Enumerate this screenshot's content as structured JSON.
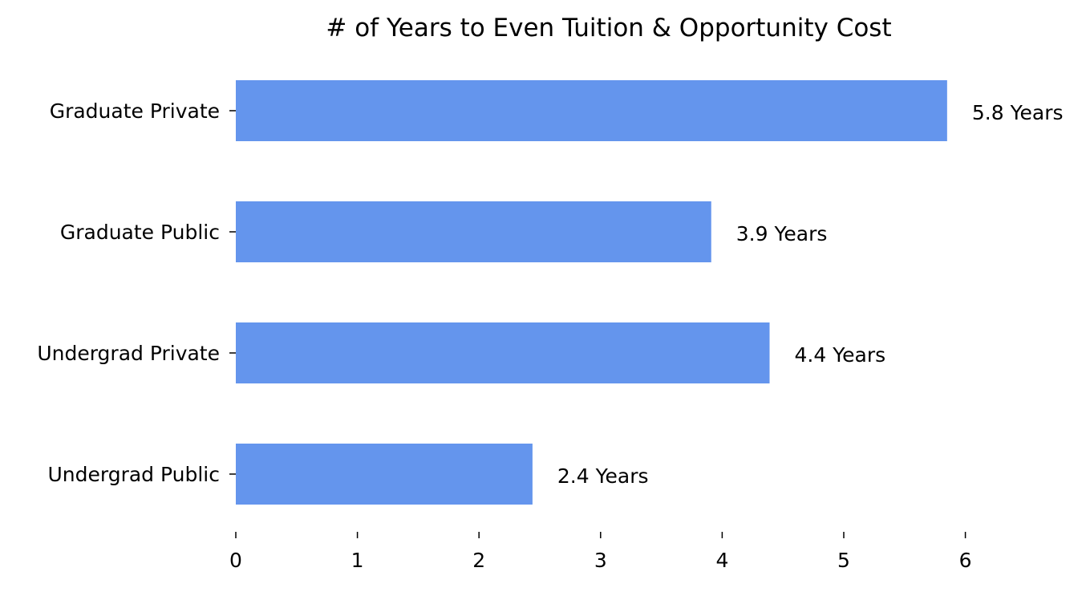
{
  "chart_data": {
    "type": "bar",
    "orientation": "horizontal",
    "title": "# of Years to Even Tuition & Opportunity Cost",
    "xlabel": "",
    "ylabel": "",
    "categories": [
      "Graduate Private",
      "Graduate Public",
      "Undergrad Private",
      "Undergrad Public"
    ],
    "values": [
      5.85,
      3.91,
      4.39,
      2.44
    ],
    "value_labels": [
      "5.8 Years",
      "3.9 Years",
      "4.4 Years",
      "2.4 Years"
    ],
    "x_ticks": [
      "0",
      "1",
      "2",
      "3",
      "4",
      "5",
      "6"
    ],
    "xlim": [
      0,
      6.6
    ],
    "grid": false,
    "legend": "none",
    "bar_color": "#6495ED"
  }
}
